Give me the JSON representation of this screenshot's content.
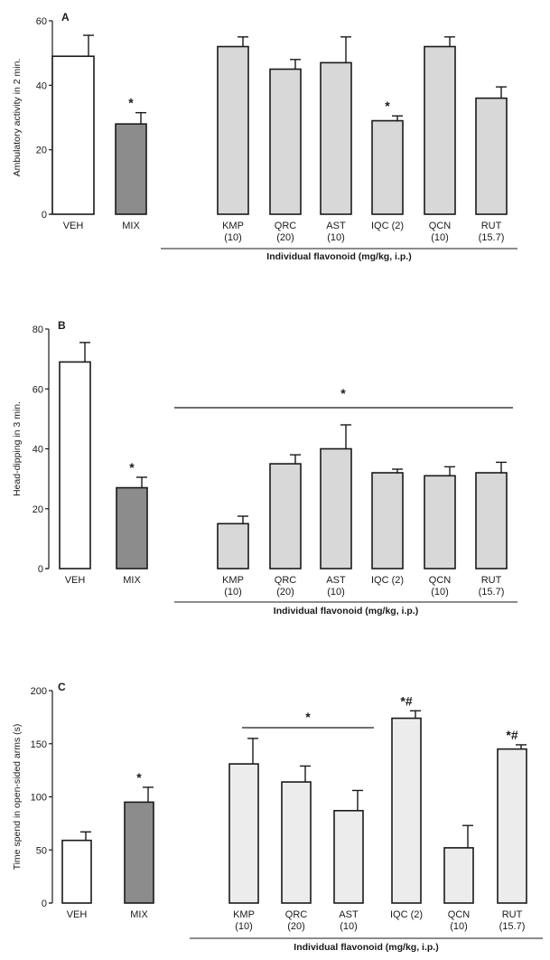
{
  "chart_data": [
    {
      "type": "bar",
      "panel": "A",
      "ylabel": "Ambulatory activity in 2 min.",
      "ylim": [
        0,
        60
      ],
      "yticks": [
        0,
        20,
        40,
        60
      ],
      "categories": [
        {
          "label": "VEH",
          "sub": ""
        },
        {
          "label": "MIX",
          "sub": ""
        },
        {
          "label": "KMP",
          "sub": "(10)"
        },
        {
          "label": "QRC",
          "sub": "(20)"
        },
        {
          "label": "AST",
          "sub": "(10)"
        },
        {
          "label": "IQC (2)",
          "sub": ""
        },
        {
          "label": "QCN",
          "sub": "(10)"
        },
        {
          "label": "RUT",
          "sub": "(15.7)"
        }
      ],
      "values": [
        49,
        28,
        52,
        45,
        47,
        29,
        52,
        36
      ],
      "errors": [
        6.5,
        3.5,
        3,
        3,
        8,
        1.5,
        3,
        3.5
      ],
      "fills": [
        "#ffffff",
        "#8c8c8c",
        "#d8d8d8",
        "#d8d8d8",
        "#d8d8d8",
        "#d8d8d8",
        "#d8d8d8",
        "#d8d8d8"
      ],
      "annotations": [
        "",
        "*",
        "",
        "",
        "",
        "*",
        "",
        ""
      ],
      "group_label": "Individual flavonoid (mg/kg, i.p.)"
    },
    {
      "type": "bar",
      "panel": "B",
      "ylabel": "Head-dipping in 3 min.",
      "ylim": [
        0,
        80
      ],
      "yticks": [
        0,
        20,
        40,
        60,
        80
      ],
      "categories": [
        {
          "label": "VEH",
          "sub": ""
        },
        {
          "label": "MIX",
          "sub": ""
        },
        {
          "label": "KMP",
          "sub": "(10)"
        },
        {
          "label": "QRC",
          "sub": "(20)"
        },
        {
          "label": "AST",
          "sub": "(10)"
        },
        {
          "label": "IQC (2)",
          "sub": ""
        },
        {
          "label": "QCN",
          "sub": "(10)"
        },
        {
          "label": "RUT",
          "sub": "(15.7)"
        }
      ],
      "values": [
        69,
        27,
        15,
        35,
        40,
        32,
        31,
        32
      ],
      "errors": [
        6.5,
        3.5,
        2.5,
        3,
        8,
        1.2,
        3,
        3.5
      ],
      "fills": [
        "#ffffff",
        "#8c8c8c",
        "#d8d8d8",
        "#d8d8d8",
        "#d8d8d8",
        "#d8d8d8",
        "#d8d8d8",
        "#d8d8d8"
      ],
      "annotations": [
        "",
        "*",
        "",
        "",
        "",
        "",
        "",
        ""
      ],
      "significance_bar_label": "*",
      "group_label": "Individual flavonoid (mg/kg, i.p.)"
    },
    {
      "type": "bar",
      "panel": "C",
      "ylabel": "Time spend in open-sided arms (s)",
      "ylim": [
        0,
        200
      ],
      "yticks": [
        0,
        50,
        100,
        150,
        200
      ],
      "categories": [
        {
          "label": "VEH",
          "sub": ""
        },
        {
          "label": "MIX",
          "sub": ""
        },
        {
          "label": "KMP",
          "sub": "(10)"
        },
        {
          "label": "QRC",
          "sub": "(20)"
        },
        {
          "label": "AST",
          "sub": "(10)"
        },
        {
          "label": "IQC (2)",
          "sub": ""
        },
        {
          "label": "QCN",
          "sub": "(10)"
        },
        {
          "label": "RUT",
          "sub": "(15.7)"
        }
      ],
      "values": [
        59,
        95,
        131,
        114,
        87,
        174,
        52,
        145
      ],
      "errors": [
        8,
        14,
        24,
        15,
        19,
        7,
        21,
        4
      ],
      "fills": [
        "#ffffff",
        "#8c8c8c",
        "#ececec",
        "#ececec",
        "#ececec",
        "#ececec",
        "#ececec",
        "#ececec"
      ],
      "annotations": [
        "",
        "*",
        "",
        "",
        "",
        "*#",
        "",
        "*#"
      ],
      "significance_bar_label": "*",
      "group_label": "Individual flavonoid (mg/kg, i.p.)"
    }
  ]
}
